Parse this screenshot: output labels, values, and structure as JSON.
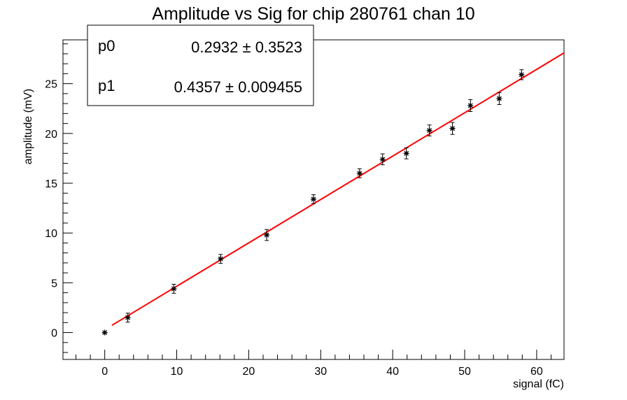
{
  "chart_data": {
    "type": "scatter",
    "title": "Amplitude vs Sig for chip 280761 chan 10",
    "xlabel": "signal (fC)",
    "ylabel": "amplitude (mV)",
    "xlim": [
      -5.8,
      63.8
    ],
    "ylim": [
      -2.7,
      29.4
    ],
    "x_ticks": [
      0,
      10,
      20,
      30,
      40,
      50,
      60
    ],
    "y_ticks": [
      0,
      5,
      10,
      15,
      20,
      25
    ],
    "grid": false,
    "legend": "none",
    "series": [
      {
        "x": [
          0,
          3.2,
          9.6,
          16.1,
          22.5,
          29.0,
          35.4,
          38.6,
          41.9,
          45.1,
          48.3,
          50.8,
          54.8,
          57.9
        ],
        "y": [
          0.0,
          1.5,
          4.4,
          7.4,
          9.8,
          13.4,
          16.0,
          17.4,
          18.0,
          20.3,
          20.5,
          22.8,
          23.5,
          25.9
        ],
        "yerr": [
          0,
          0.45,
          0.45,
          0.45,
          0.55,
          0.45,
          0.45,
          0.55,
          0.55,
          0.55,
          0.6,
          0.6,
          0.6,
          0.5
        ],
        "color": "#000000"
      }
    ],
    "fit": {
      "color": "#ff0000",
      "x_range": [
        1.0,
        63.8
      ],
      "p0": 0.2932,
      "p1": 0.4357
    },
    "stats_box": {
      "position": "top-left",
      "rows": [
        {
          "name": "p0",
          "value": "0.2932 ± 0.3523"
        },
        {
          "name": "p1",
          "value": "0.4357 ± 0.009455"
        }
      ]
    }
  }
}
